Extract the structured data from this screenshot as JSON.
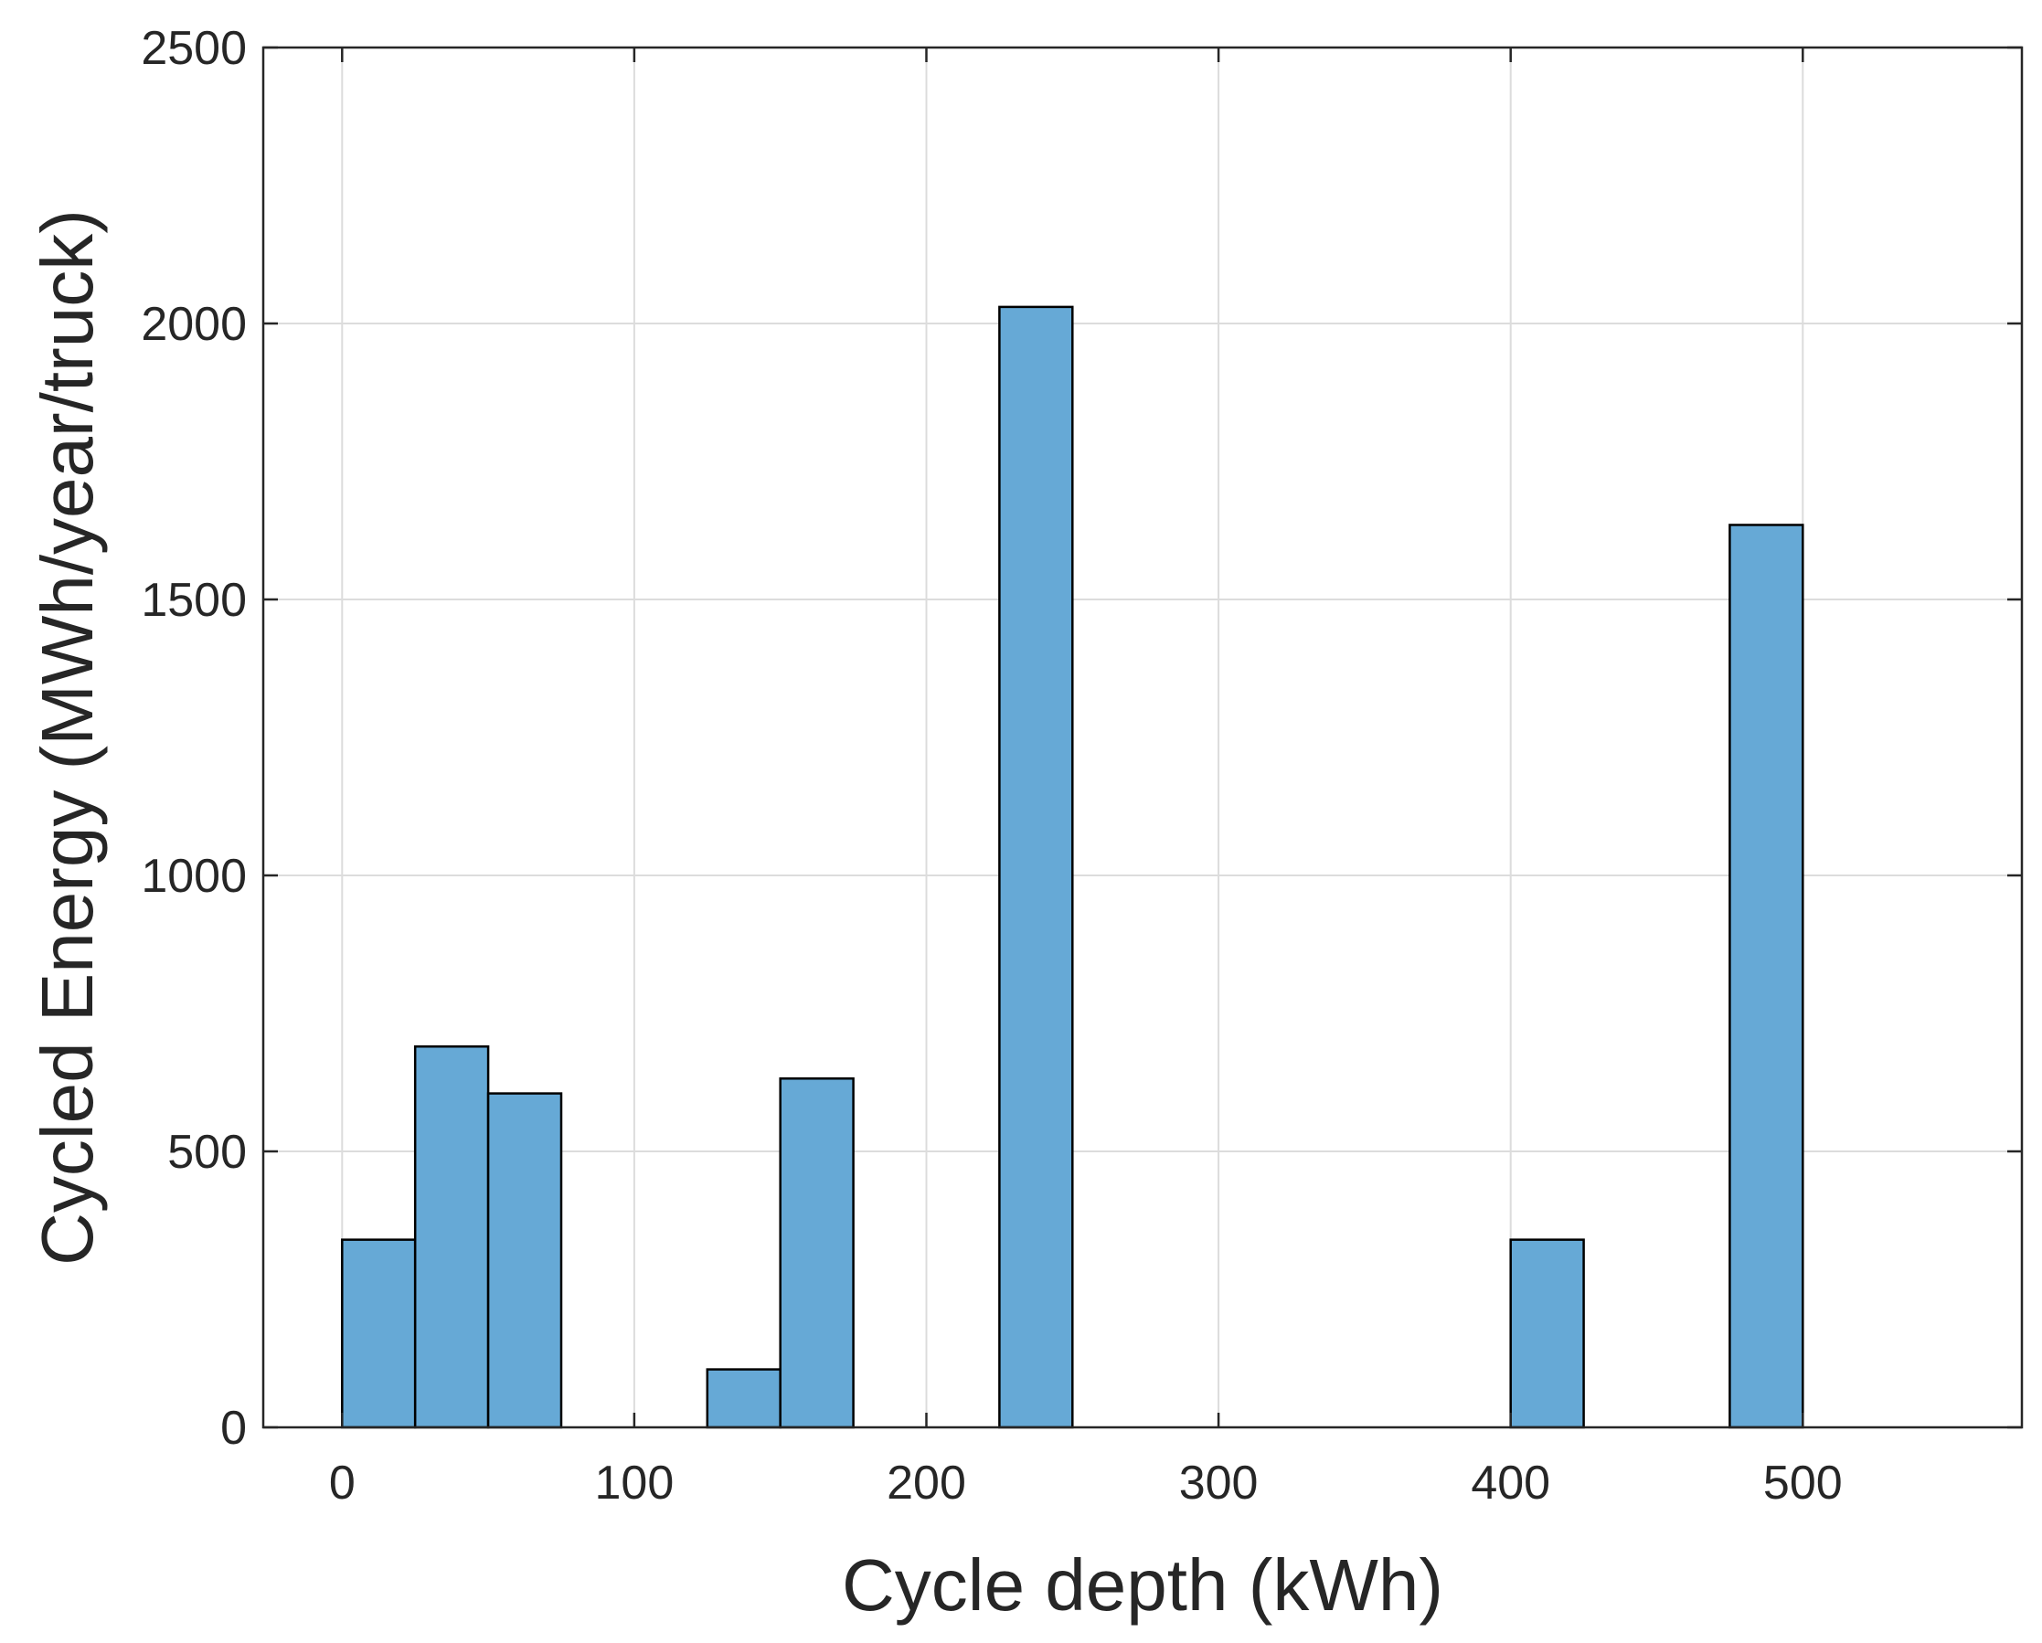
{
  "chart_data": {
    "type": "bar",
    "subtype": "histogram",
    "title": "",
    "xlabel": "Cycle depth (kWh)",
    "ylabel": "Cycled Energy (MWh/year/truck)",
    "xlim": [
      -27,
      575
    ],
    "ylim": [
      0,
      2500
    ],
    "xticks": [
      0,
      100,
      200,
      300,
      400,
      500
    ],
    "yticks": [
      0,
      500,
      1000,
      1500,
      2000,
      2500
    ],
    "grid": true,
    "bar_color": "#66a9d6",
    "edge_color": "#000000",
    "bins": [
      {
        "x0": 0,
        "x1": 25,
        "value": 340
      },
      {
        "x0": 25,
        "x1": 50,
        "value": 690
      },
      {
        "x0": 50,
        "x1": 75,
        "value": 605
      },
      {
        "x0": 125,
        "x1": 150,
        "value": 105
      },
      {
        "x0": 150,
        "x1": 175,
        "value": 632
      },
      {
        "x0": 225,
        "x1": 250,
        "value": 2030
      },
      {
        "x0": 400,
        "x1": 425,
        "value": 340
      },
      {
        "x0": 475,
        "x1": 500,
        "value": 1635
      }
    ]
  }
}
